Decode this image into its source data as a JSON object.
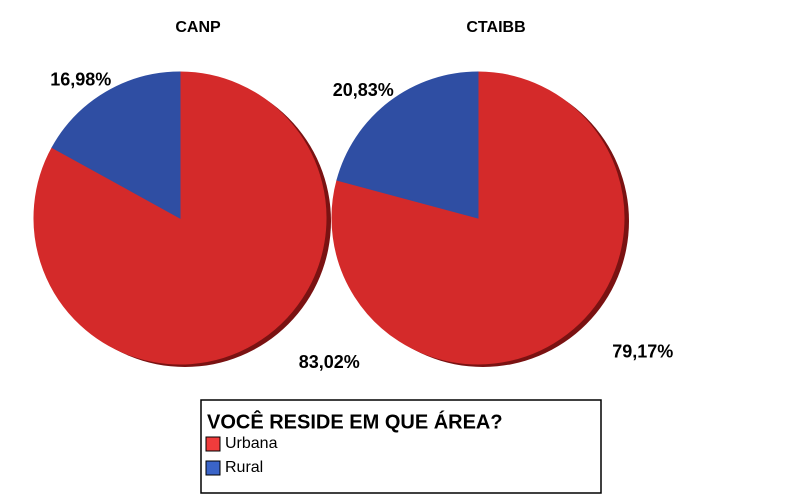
{
  "chart_data": [
    {
      "type": "pie",
      "title": "CANP",
      "categories": [
        "Urbana",
        "Rural"
      ],
      "values": [
        83.02,
        16.98
      ],
      "value_labels": [
        "83,02%",
        "16,98%"
      ],
      "colors": [
        "#d42a2a",
        "#2f4ea3"
      ]
    },
    {
      "type": "pie",
      "title": "CTAIBB",
      "categories": [
        "Urbana",
        "Rural"
      ],
      "values": [
        79.17,
        20.83
      ],
      "value_labels": [
        "79,17%",
        "20,83%"
      ],
      "colors": [
        "#d42a2a",
        "#2f4ea3"
      ]
    }
  ],
  "legend": {
    "title": "VOCÊ RESIDE EM QUE ÁREA?",
    "colors": [
      "#f03c3c",
      "#3a64c8"
    ]
  }
}
